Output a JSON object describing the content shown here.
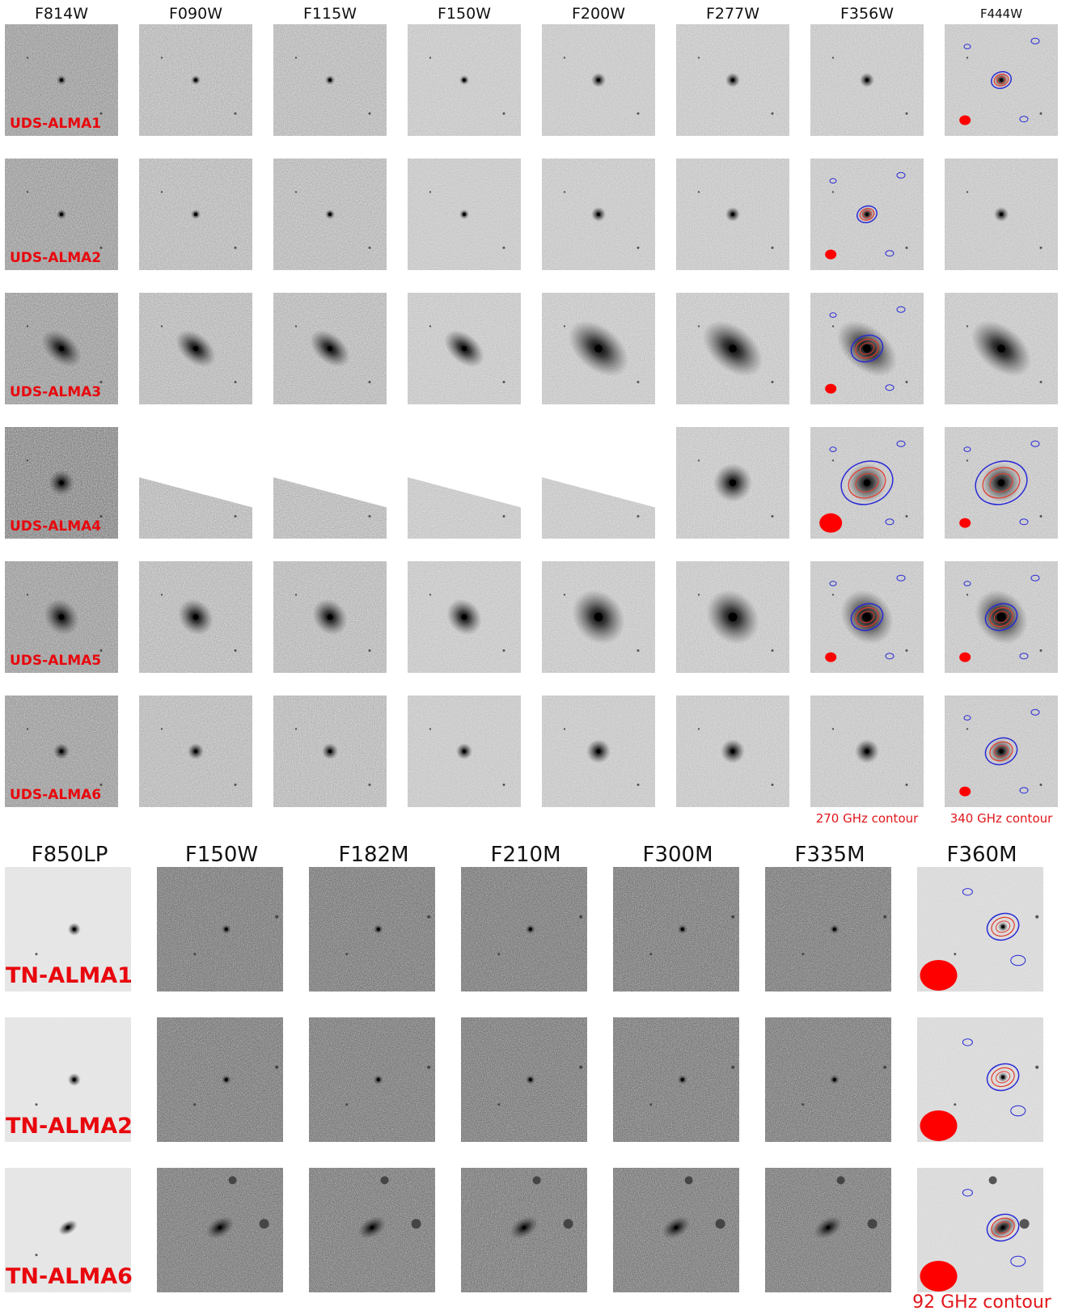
{
  "top_section": {
    "filters": [
      "F814W",
      "F090W",
      "F115W",
      "F150W",
      "F200W",
      "F277W",
      "F356W",
      "F444W"
    ],
    "sources": [
      "UDS-ALMA1",
      "UDS-ALMA2",
      "UDS-ALMA3",
      "UDS-ALMA4",
      "UDS-ALMA5",
      "UDS-ALMA6"
    ],
    "contour_labels": {
      "f356w": "270 GHz contour",
      "f444w": "340 GHz contour"
    }
  },
  "bottom_section": {
    "filters": [
      "F850LP",
      "F150W",
      "F182M",
      "F210M",
      "F300M",
      "F335M",
      "F360M"
    ],
    "sources": [
      "TN-ALMA1",
      "TN-ALMA2",
      "TN-ALMA6"
    ],
    "contour_label": "92 GHz contour"
  },
  "colors": {
    "label_red": "#e8070d",
    "contour_outer": "#2a2ad6",
    "contour_inner": "#e23a2e",
    "beam": "#ff0000"
  }
}
